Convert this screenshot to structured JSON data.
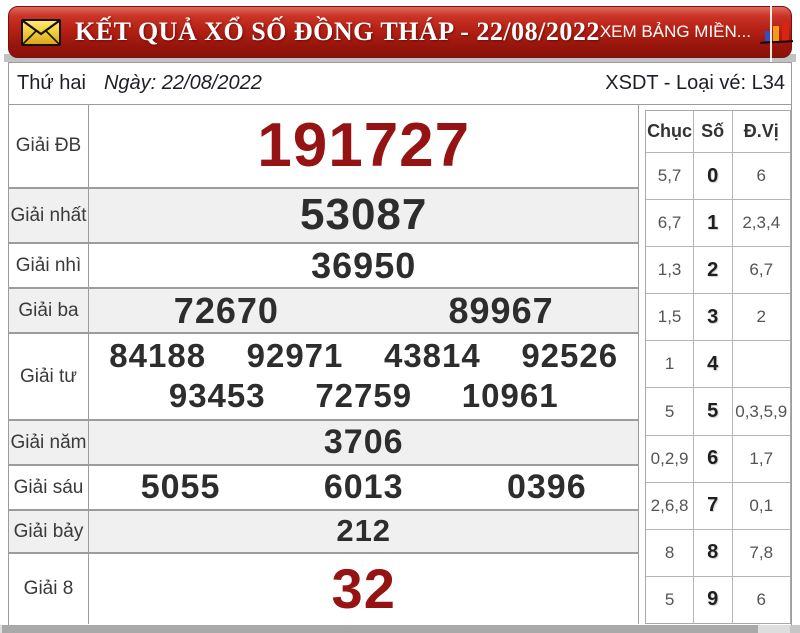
{
  "header": {
    "title": "KẾT QUẢ XỔ SỐ ĐỒNG THÁP - 22/08/2022",
    "view_link": "XEM BẢNG MIỀN...",
    "envelope_icon": "envelope-icon",
    "chart_icon": "bar-chart-icon"
  },
  "subheader": {
    "weekday": "Thứ hai",
    "date_label": "Ngày: 22/08/2022",
    "ticket_info": "XSDT - Loại vé: L34"
  },
  "results": {
    "rows": [
      {
        "key": "db",
        "label": "Giải ĐB",
        "numbers": [
          "191727"
        ],
        "highlight": true,
        "shade": false,
        "wrap": 0
      },
      {
        "key": "nhat",
        "label": "Giải nhất",
        "numbers": [
          "53087"
        ],
        "highlight": false,
        "shade": true,
        "wrap": 0
      },
      {
        "key": "nhi",
        "label": "Giải nhì",
        "numbers": [
          "36950"
        ],
        "highlight": false,
        "shade": false,
        "wrap": 0
      },
      {
        "key": "ba",
        "label": "Giải ba",
        "numbers": [
          "72670",
          "89967"
        ],
        "highlight": false,
        "shade": true,
        "wrap": 0
      },
      {
        "key": "tu",
        "label": "Giải tư",
        "numbers": [
          "84188",
          "92971",
          "43814",
          "92526",
          "93453",
          "72759",
          "10961"
        ],
        "highlight": false,
        "shade": false,
        "wrap": 4
      },
      {
        "key": "nam",
        "label": "Giải năm",
        "numbers": [
          "3706"
        ],
        "highlight": false,
        "shade": true,
        "wrap": 0
      },
      {
        "key": "sau",
        "label": "Giải sáu",
        "numbers": [
          "5055",
          "6013",
          "0396"
        ],
        "highlight": false,
        "shade": false,
        "wrap": 0
      },
      {
        "key": "bay",
        "label": "Giải bảy",
        "numbers": [
          "212"
        ],
        "highlight": false,
        "shade": true,
        "wrap": 0
      },
      {
        "key": "g8",
        "label": "Giải 8",
        "numbers": [
          "32"
        ],
        "highlight": true,
        "shade": false,
        "wrap": 0
      }
    ]
  },
  "digit_table": {
    "headers": [
      "Chục",
      "Số",
      "Đ.Vị"
    ],
    "rows": [
      {
        "chuc": "5,7",
        "so": "0",
        "dvi": "6"
      },
      {
        "chuc": "6,7",
        "so": "1",
        "dvi": "2,3,4"
      },
      {
        "chuc": "1,3",
        "so": "2",
        "dvi": "6,7"
      },
      {
        "chuc": "1,5",
        "so": "3",
        "dvi": "2"
      },
      {
        "chuc": "1",
        "so": "4",
        "dvi": ""
      },
      {
        "chuc": "5",
        "so": "5",
        "dvi": "0,3,5,9"
      },
      {
        "chuc": "0,2,9",
        "so": "6",
        "dvi": "1,7"
      },
      {
        "chuc": "2,6,8",
        "so": "7",
        "dvi": "0,1"
      },
      {
        "chuc": "8",
        "so": "8",
        "dvi": "7,8"
      },
      {
        "chuc": "5",
        "so": "9",
        "dvi": "6"
      }
    ]
  },
  "colors": {
    "header_red": "#b52115",
    "accent_red": "#951313",
    "number_dark": "#2d2d2d",
    "row_shade": "#f0f0f0",
    "envelope_yellow": "#f2cf3c"
  }
}
